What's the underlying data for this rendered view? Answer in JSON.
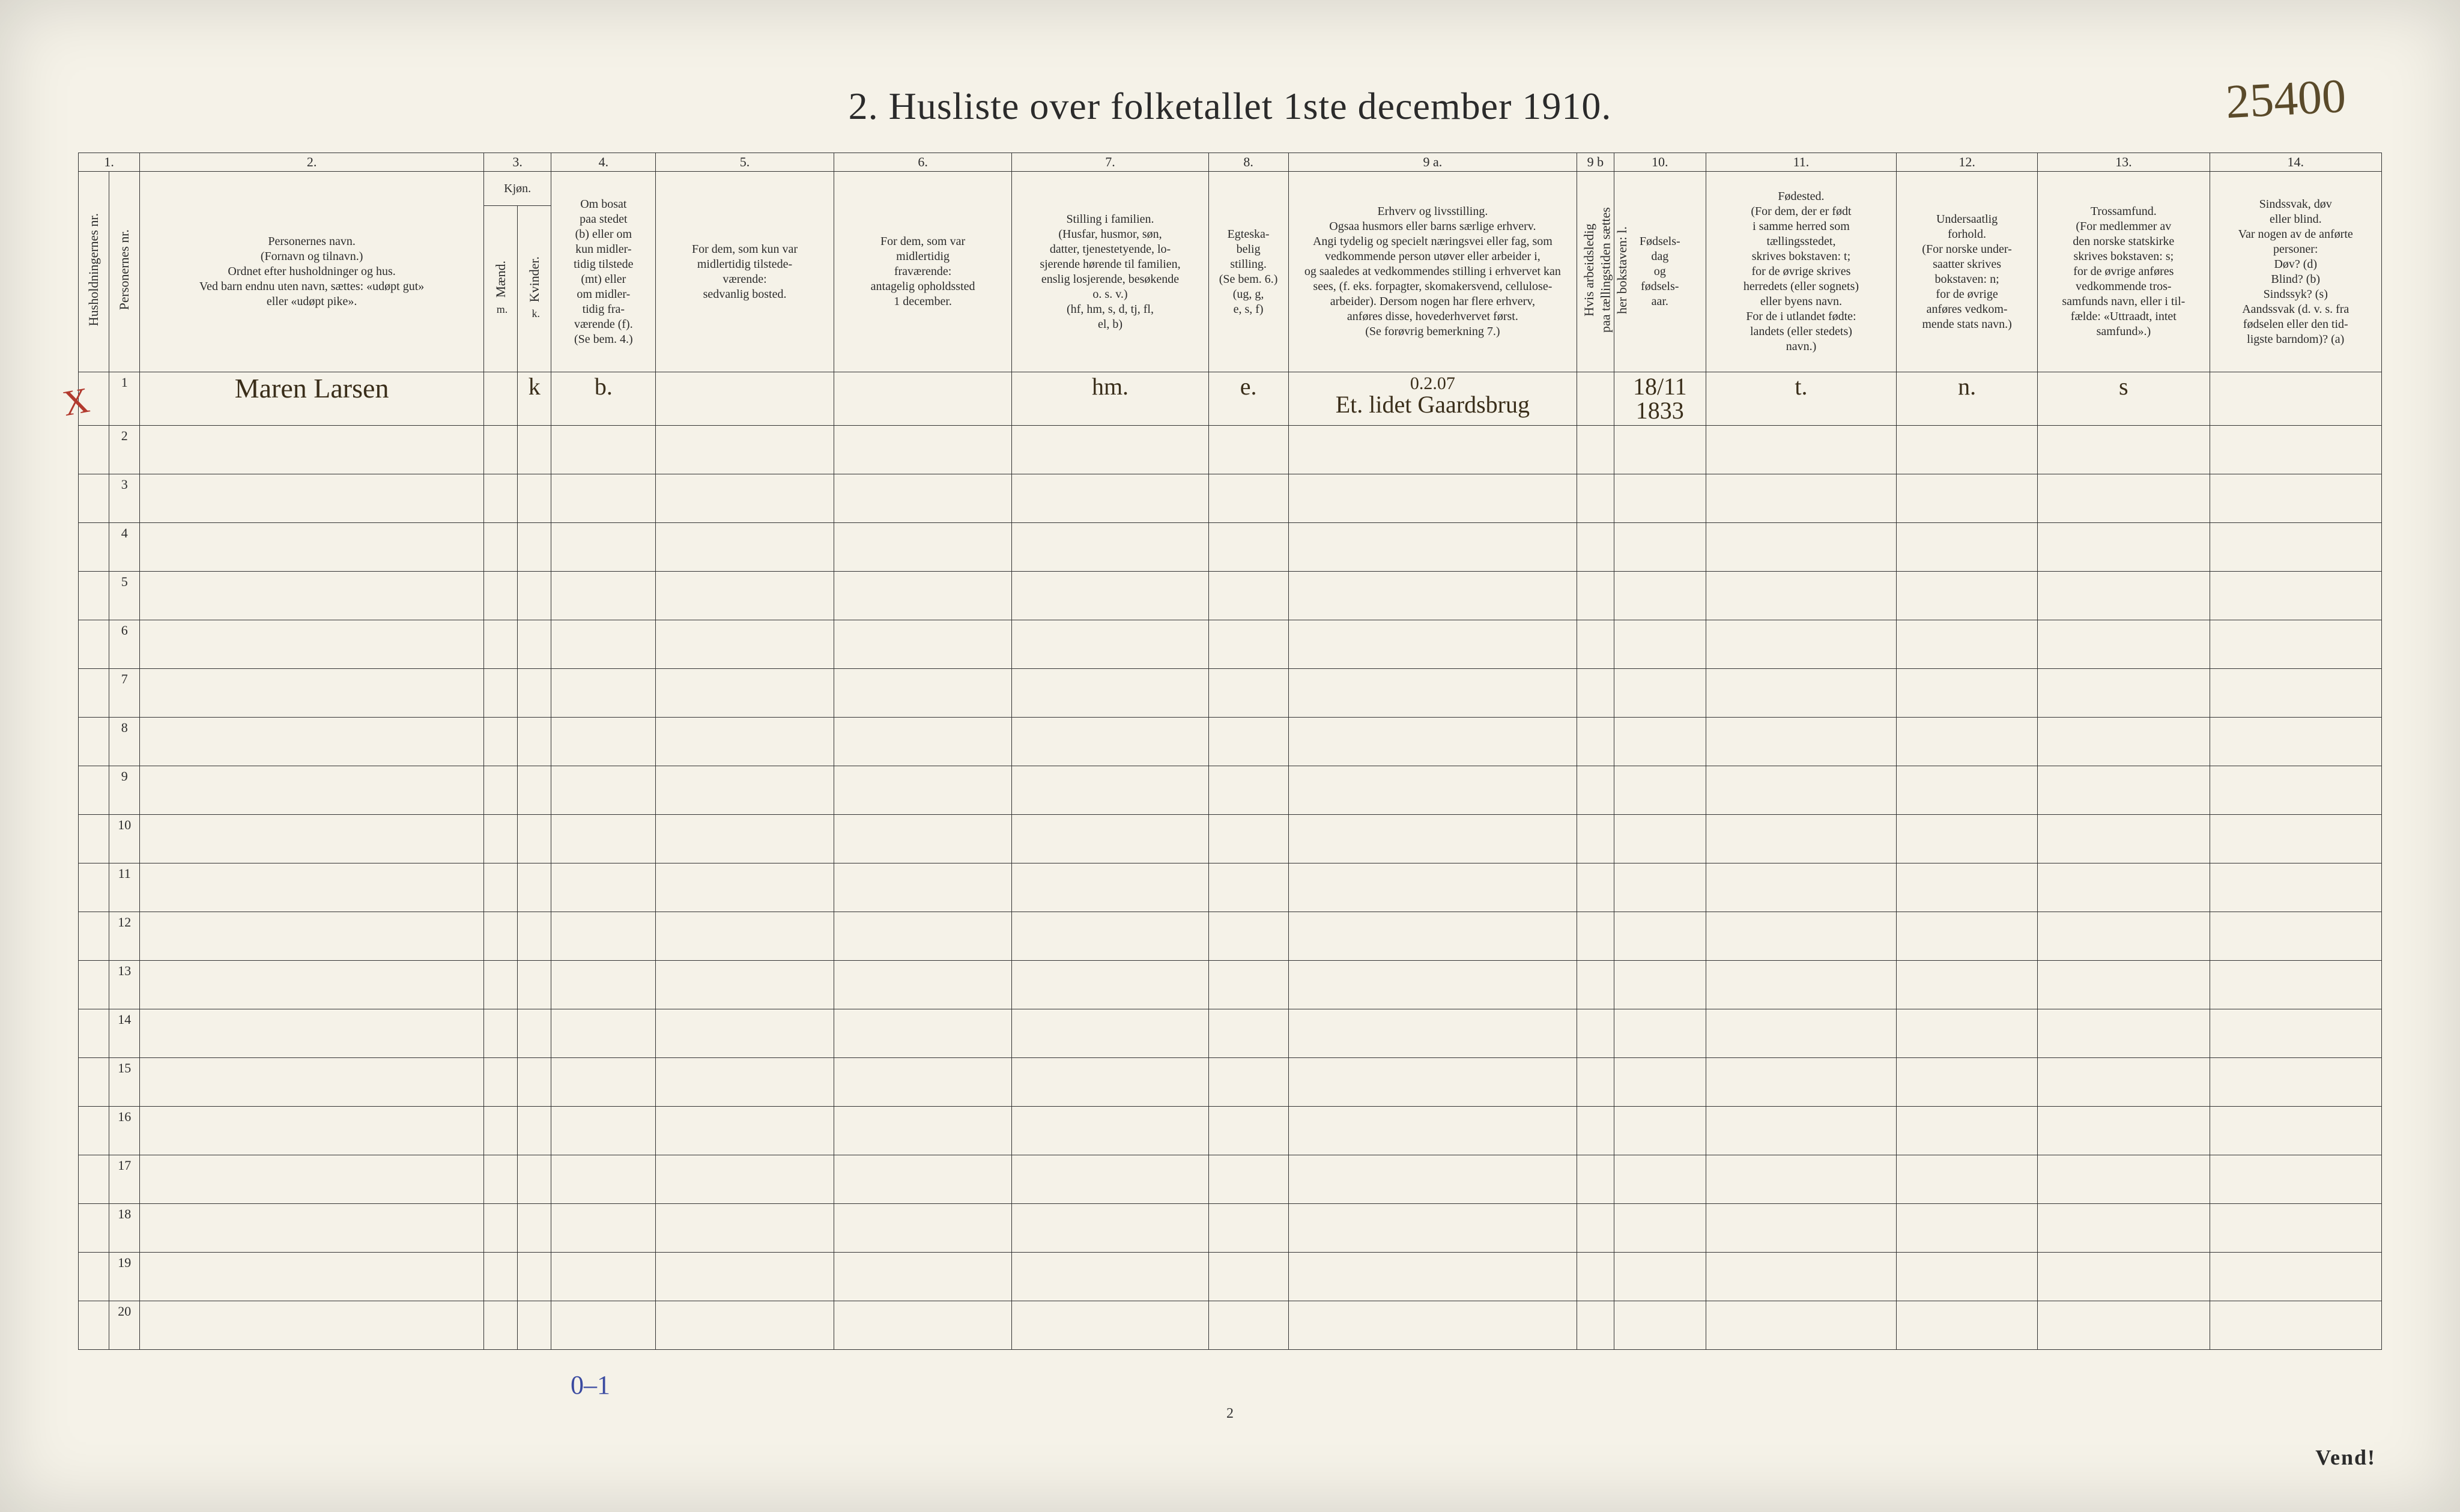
{
  "title": "2.  Husliste over folketallet 1ste december 1910.",
  "page_marking": "25400",
  "footer_page_num": "2",
  "vend": "Vend!",
  "tally": "0–1",
  "red_mark": "X",
  "col_numbers": [
    "1.",
    "2.",
    "3.",
    "4.",
    "5.",
    "6.",
    "7.",
    "8.",
    "9 a.",
    "9 b",
    "10.",
    "11.",
    "12.",
    "13.",
    "14."
  ],
  "headers": {
    "c1a": "Husholdningernes nr.",
    "c1b": "Personernes nr.",
    "c2": "Personernes navn.\n(Fornavn og tilnavn.)\nOrdnet efter husholdninger og hus.\nVed barn endnu uten navn, sættes: «udøpt gut»\neller «udøpt pike».",
    "c3": "Kjøn.",
    "c3a": "Mænd.",
    "c3b": "Kvinder.",
    "c4": "Om bosat\npaa stedet\n(b) eller om\nkun midler-\ntidig tilstede\n(mt) eller\nom midler-\ntidig fra-\nværende (f).\n(Se bem. 4.)",
    "c5": "For dem, som kun var\nmidlertidig tilstede-\nværende:\nsedvanlig bosted.",
    "c6": "For dem, som var\nmidlertidig\nfraværende:\nantagelig opholdssted\n1 december.",
    "c7": "Stilling i familien.\n(Husfar, husmor, søn,\ndatter, tjenestetyende, lo-\nsjerende hørende til familien,\nenslig losjerende, besøkende\no. s. v.)\n(hf, hm, s, d, tj, fl,\nel, b)",
    "c8": "Egteska-\nbelig\nstilling.\n(Se bem. 6.)\n(ug, g,\ne, s, f)",
    "c9a": "Erhverv og livsstilling.\nOgsaa husmors eller barns særlige erhverv.\nAngi tydelig og specielt næringsvei eller fag, som\nvedkommende person utøver eller arbeider i,\nog saaledes at vedkommendes stilling i erhvervet kan\nsees, (f. eks. forpagter, skomakersvend, cellulose-\narbeider). Dersom nogen har flere erhverv,\nanføres disse, hovederhvervet først.\n(Se forøvrig bemerkning 7.)",
    "c9b": "Hvis arbeidsledig\npaa tællingstiden sættes\nher bokstaven: l.",
    "c10": "Fødsels-\ndag\nog\nfødsels-\naar.",
    "c11": "Fødested.\n(For dem, der er født\ni samme herred som\ntællingsstedet,\nskrives bokstaven: t;\nfor de øvrige skrives\nherredets (eller sognets)\neller byens navn.\nFor de i utlandet fødte:\nlandets (eller stedets)\nnavn.)",
    "c12": "Undersaatlig\nforhold.\n(For norske under-\nsaatter skrives\nbokstaven: n;\nfor de øvrige\nanføres vedkom-\nmende stats navn.)",
    "c13": "Trossamfund.\n(For medlemmer av\nden norske statskirke\nskrives bokstaven: s;\nfor de øvrige anføres\nvedkommende tros-\nsamfunds navn, eller i til-\nfælde: «Uttraadt, intet\nsamfund».)",
    "c14": "Sindssvak, døv\neller blind.\nVar nogen av de anførte\npersoner:\nDøv?        (d)\nBlind?      (b)\nSindssyk?   (s)\nAandssvak (d. v. s. fra\nfødselen eller den tid-\nligste barndom)? (a)"
  },
  "row_occ": "0.2.07",
  "rows": [
    {
      "num": "1",
      "name": "Maren Larsen",
      "sex_m": "",
      "sex_k": "k",
      "bosat": "b.",
      "c5": "",
      "c6": "",
      "stilling": "hm.",
      "egte": "e.",
      "erhverv": "Et. lidet Gaardsbrug",
      "ledig": "",
      "fodsel": "18/11\n1833",
      "fodested": "t.",
      "under": "n.",
      "tros": "s",
      "sinds": ""
    },
    {
      "num": "2"
    },
    {
      "num": "3"
    },
    {
      "num": "4"
    },
    {
      "num": "5"
    },
    {
      "num": "6"
    },
    {
      "num": "7"
    },
    {
      "num": "8"
    },
    {
      "num": "9"
    },
    {
      "num": "10"
    },
    {
      "num": "11"
    },
    {
      "num": "12"
    },
    {
      "num": "13"
    },
    {
      "num": "14"
    },
    {
      "num": "15"
    },
    {
      "num": "16"
    },
    {
      "num": "17"
    },
    {
      "num": "18"
    },
    {
      "num": "19"
    },
    {
      "num": "20"
    }
  ]
}
